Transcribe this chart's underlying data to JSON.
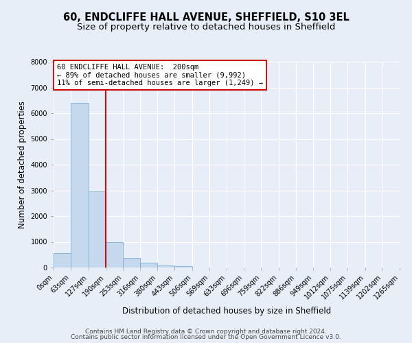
{
  "title_line1": "60, ENDCLIFFE HALL AVENUE, SHEFFIELD, S10 3EL",
  "title_line2": "Size of property relative to detached houses in Sheffield",
  "xlabel": "Distribution of detached houses by size in Sheffield",
  "ylabel": "Number of detached properties",
  "bar_edges": [
    0,
    63,
    127,
    190,
    253,
    316,
    380,
    443,
    506,
    569,
    633,
    696,
    759,
    822,
    886,
    949,
    1012,
    1075,
    1139,
    1202,
    1265
  ],
  "bar_heights": [
    560,
    6400,
    2950,
    1000,
    380,
    175,
    90,
    50,
    0,
    0,
    0,
    0,
    0,
    0,
    0,
    0,
    0,
    0,
    0,
    0
  ],
  "bar_color": "#c5d8ed",
  "bar_edge_color": "#7aafd4",
  "property_line_x": 190,
  "annotation_title": "60 ENDCLIFFE HALL AVENUE:  200sqm",
  "annotation_line1": "← 89% of detached houses are smaller (9,992)",
  "annotation_line2": "11% of semi-detached houses are larger (1,249) →",
  "annotation_box_color": "#ffffff",
  "annotation_box_edge": "#cc0000",
  "property_line_color": "#cc0000",
  "ylim": [
    0,
    8000
  ],
  "yticks": [
    0,
    1000,
    2000,
    3000,
    4000,
    5000,
    6000,
    7000,
    8000
  ],
  "xtick_labels": [
    "0sqm",
    "63sqm",
    "127sqm",
    "190sqm",
    "253sqm",
    "316sqm",
    "380sqm",
    "443sqm",
    "506sqm",
    "569sqm",
    "633sqm",
    "696sqm",
    "759sqm",
    "822sqm",
    "886sqm",
    "949sqm",
    "1012sqm",
    "1075sqm",
    "1139sqm",
    "1202sqm",
    "1265sqm"
  ],
  "footer_line1": "Contains HM Land Registry data © Crown copyright and database right 2024.",
  "footer_line2": "Contains public sector information licensed under the Open Government Licence v3.0.",
  "bg_color": "#e8eef8",
  "plot_bg_color": "#e8eef8",
  "title_fontsize": 10.5,
  "subtitle_fontsize": 9.5,
  "tick_fontsize": 7,
  "ylabel_fontsize": 8.5,
  "xlabel_fontsize": 8.5,
  "footer_fontsize": 6.5
}
